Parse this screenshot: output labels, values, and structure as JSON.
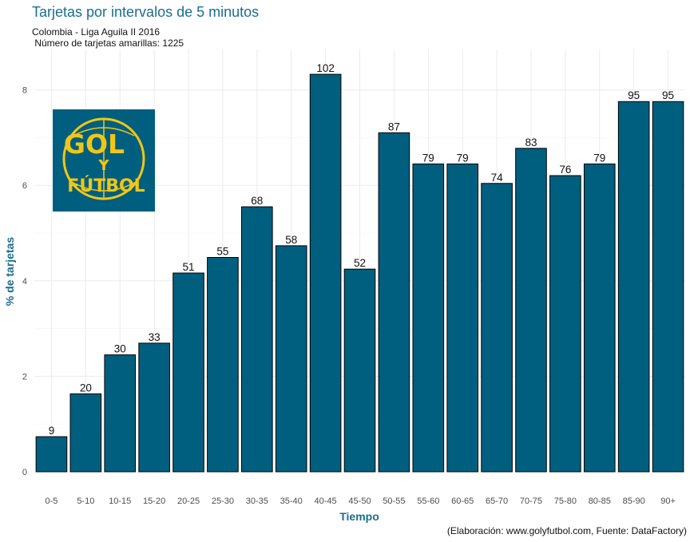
{
  "colors": {
    "bar": "#005f7f",
    "title": "#1a6e8f",
    "grid": "#ebebeb",
    "logo_bg": "#005f7f",
    "logo_fg": "#f2c617"
  },
  "logo": {
    "line1": "GOL",
    "line2": "Y",
    "line3": "FÚTBOL"
  },
  "chart_data": {
    "type": "bar",
    "title": "Tarjetas por intervalos de 5 minutos",
    "subtitle_line1": "Colombia - Liga Aguila II 2016",
    "subtitle_line2": " Número de tarjetas amarillas: 1225",
    "xlabel": "Tiempo",
    "ylabel": "% de tarjetas",
    "caption": "(Elaboración: www.golyfutbol.com, Fuente: DataFactory)",
    "ylim": [
      0,
      8.7
    ],
    "yticks": [
      0,
      2,
      4,
      6,
      8
    ],
    "total": 1225,
    "categories": [
      "0-5",
      "5-10",
      "10-15",
      "15-20",
      "20-25",
      "25-30",
      "30-35",
      "35-40",
      "40-45",
      "45-50",
      "50-55",
      "55-60",
      "60-65",
      "65-70",
      "70-75",
      "75-80",
      "80-85",
      "85-90",
      "90+"
    ],
    "counts": [
      9,
      20,
      30,
      33,
      51,
      55,
      68,
      58,
      102,
      52,
      87,
      79,
      79,
      74,
      83,
      76,
      79,
      95,
      95
    ]
  }
}
